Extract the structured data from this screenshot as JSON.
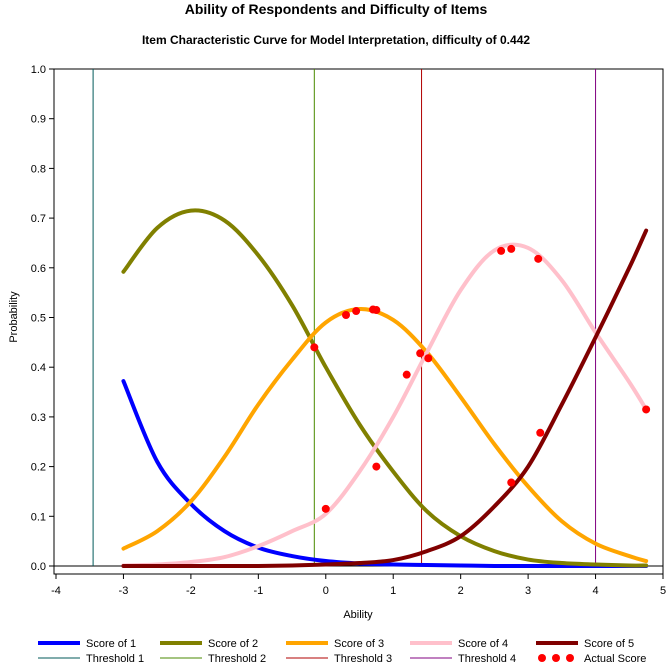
{
  "title": "Ability of Respondents and Difficulty of Items",
  "subtitle": "Item Characteristic Curve for Model Interpretation, difficulty of 0.442",
  "chart_data": {
    "type": "line",
    "title": "Ability of Respondents and Difficulty of Items",
    "subtitle": "Item Characteristic Curve for Model Interpretation, difficulty of 0.442",
    "xlabel": "Ability",
    "ylabel": "Probability",
    "xlim": [
      -4,
      5
    ],
    "ylim": [
      0,
      1.0
    ],
    "xticks": [
      "-4",
      "-3",
      "-2",
      "-1",
      "0",
      "1",
      "2",
      "3",
      "4",
      "5"
    ],
    "yticks": [
      "0.0",
      "0.1",
      "0.2",
      "0.3",
      "0.4",
      "0.5",
      "0.6",
      "0.7",
      "0.8",
      "0.9",
      "1.0"
    ],
    "grid": false,
    "legend_position": "bottom",
    "x": [
      -3.0,
      -2.5,
      -2.0,
      -1.5,
      -1.0,
      -0.5,
      0.0,
      0.5,
      1.0,
      1.5,
      2.0,
      2.5,
      3.0,
      3.5,
      4.0,
      4.5,
      4.75
    ],
    "series": [
      {
        "name": "Score of 1",
        "color": "#0000ff",
        "values": [
          0.372,
          0.21,
          0.125,
          0.07,
          0.037,
          0.02,
          0.01,
          0.005,
          0.003,
          0.002,
          0.001,
          0.0,
          0.0,
          0.0,
          0.0,
          0.0,
          0.0
        ]
      },
      {
        "name": "Score of 2",
        "color": "#808000",
        "values": [
          0.592,
          0.68,
          0.715,
          0.695,
          0.625,
          0.525,
          0.4,
          0.285,
          0.19,
          0.11,
          0.06,
          0.03,
          0.013,
          0.006,
          0.003,
          0.001,
          0.001
        ]
      },
      {
        "name": "Score of 3",
        "color": "#ffa500",
        "values": [
          0.035,
          0.07,
          0.13,
          0.22,
          0.325,
          0.415,
          0.49,
          0.517,
          0.495,
          0.43,
          0.34,
          0.245,
          0.16,
          0.09,
          0.045,
          0.02,
          0.01
        ]
      },
      {
        "name": "Score of 4",
        "color": "#ffc0cb",
        "values": [
          0.001,
          0.003,
          0.008,
          0.018,
          0.04,
          0.07,
          0.105,
          0.19,
          0.3,
          0.43,
          0.555,
          0.635,
          0.64,
          0.575,
          0.47,
          0.37,
          0.315
        ]
      },
      {
        "name": "Score of 5",
        "color": "#800000",
        "values": [
          0.0,
          0.0,
          0.0,
          0.0,
          0.0,
          0.001,
          0.003,
          0.006,
          0.012,
          0.03,
          0.06,
          0.12,
          0.2,
          0.325,
          0.46,
          0.6,
          0.675
        ]
      }
    ],
    "thresholds": [
      {
        "name": "Threshold 1",
        "x": -3.45,
        "color": "#005a5a"
      },
      {
        "name": "Threshold 2",
        "x": -0.17,
        "color": "#4a8a00"
      },
      {
        "name": "Threshold 3",
        "x": 1.42,
        "color": "#b00000"
      },
      {
        "name": "Threshold 4",
        "x": 4.0,
        "color": "#800080"
      }
    ],
    "actual_scores": {
      "name": "Actual Score",
      "color": "#ff0000",
      "points": [
        {
          "x": -0.17,
          "y": 0.44
        },
        {
          "x": 0.0,
          "y": 0.115
        },
        {
          "x": 0.3,
          "y": 0.505
        },
        {
          "x": 0.45,
          "y": 0.513
        },
        {
          "x": 0.7,
          "y": 0.516
        },
        {
          "x": 0.75,
          "y": 0.515
        },
        {
          "x": 0.75,
          "y": 0.2
        },
        {
          "x": 1.2,
          "y": 0.385
        },
        {
          "x": 1.4,
          "y": 0.428
        },
        {
          "x": 1.52,
          "y": 0.418
        },
        {
          "x": 2.6,
          "y": 0.634
        },
        {
          "x": 2.75,
          "y": 0.638
        },
        {
          "x": 2.75,
          "y": 0.168
        },
        {
          "x": 3.15,
          "y": 0.618
        },
        {
          "x": 3.18,
          "y": 0.268
        },
        {
          "x": 4.75,
          "y": 0.315
        }
      ]
    }
  }
}
